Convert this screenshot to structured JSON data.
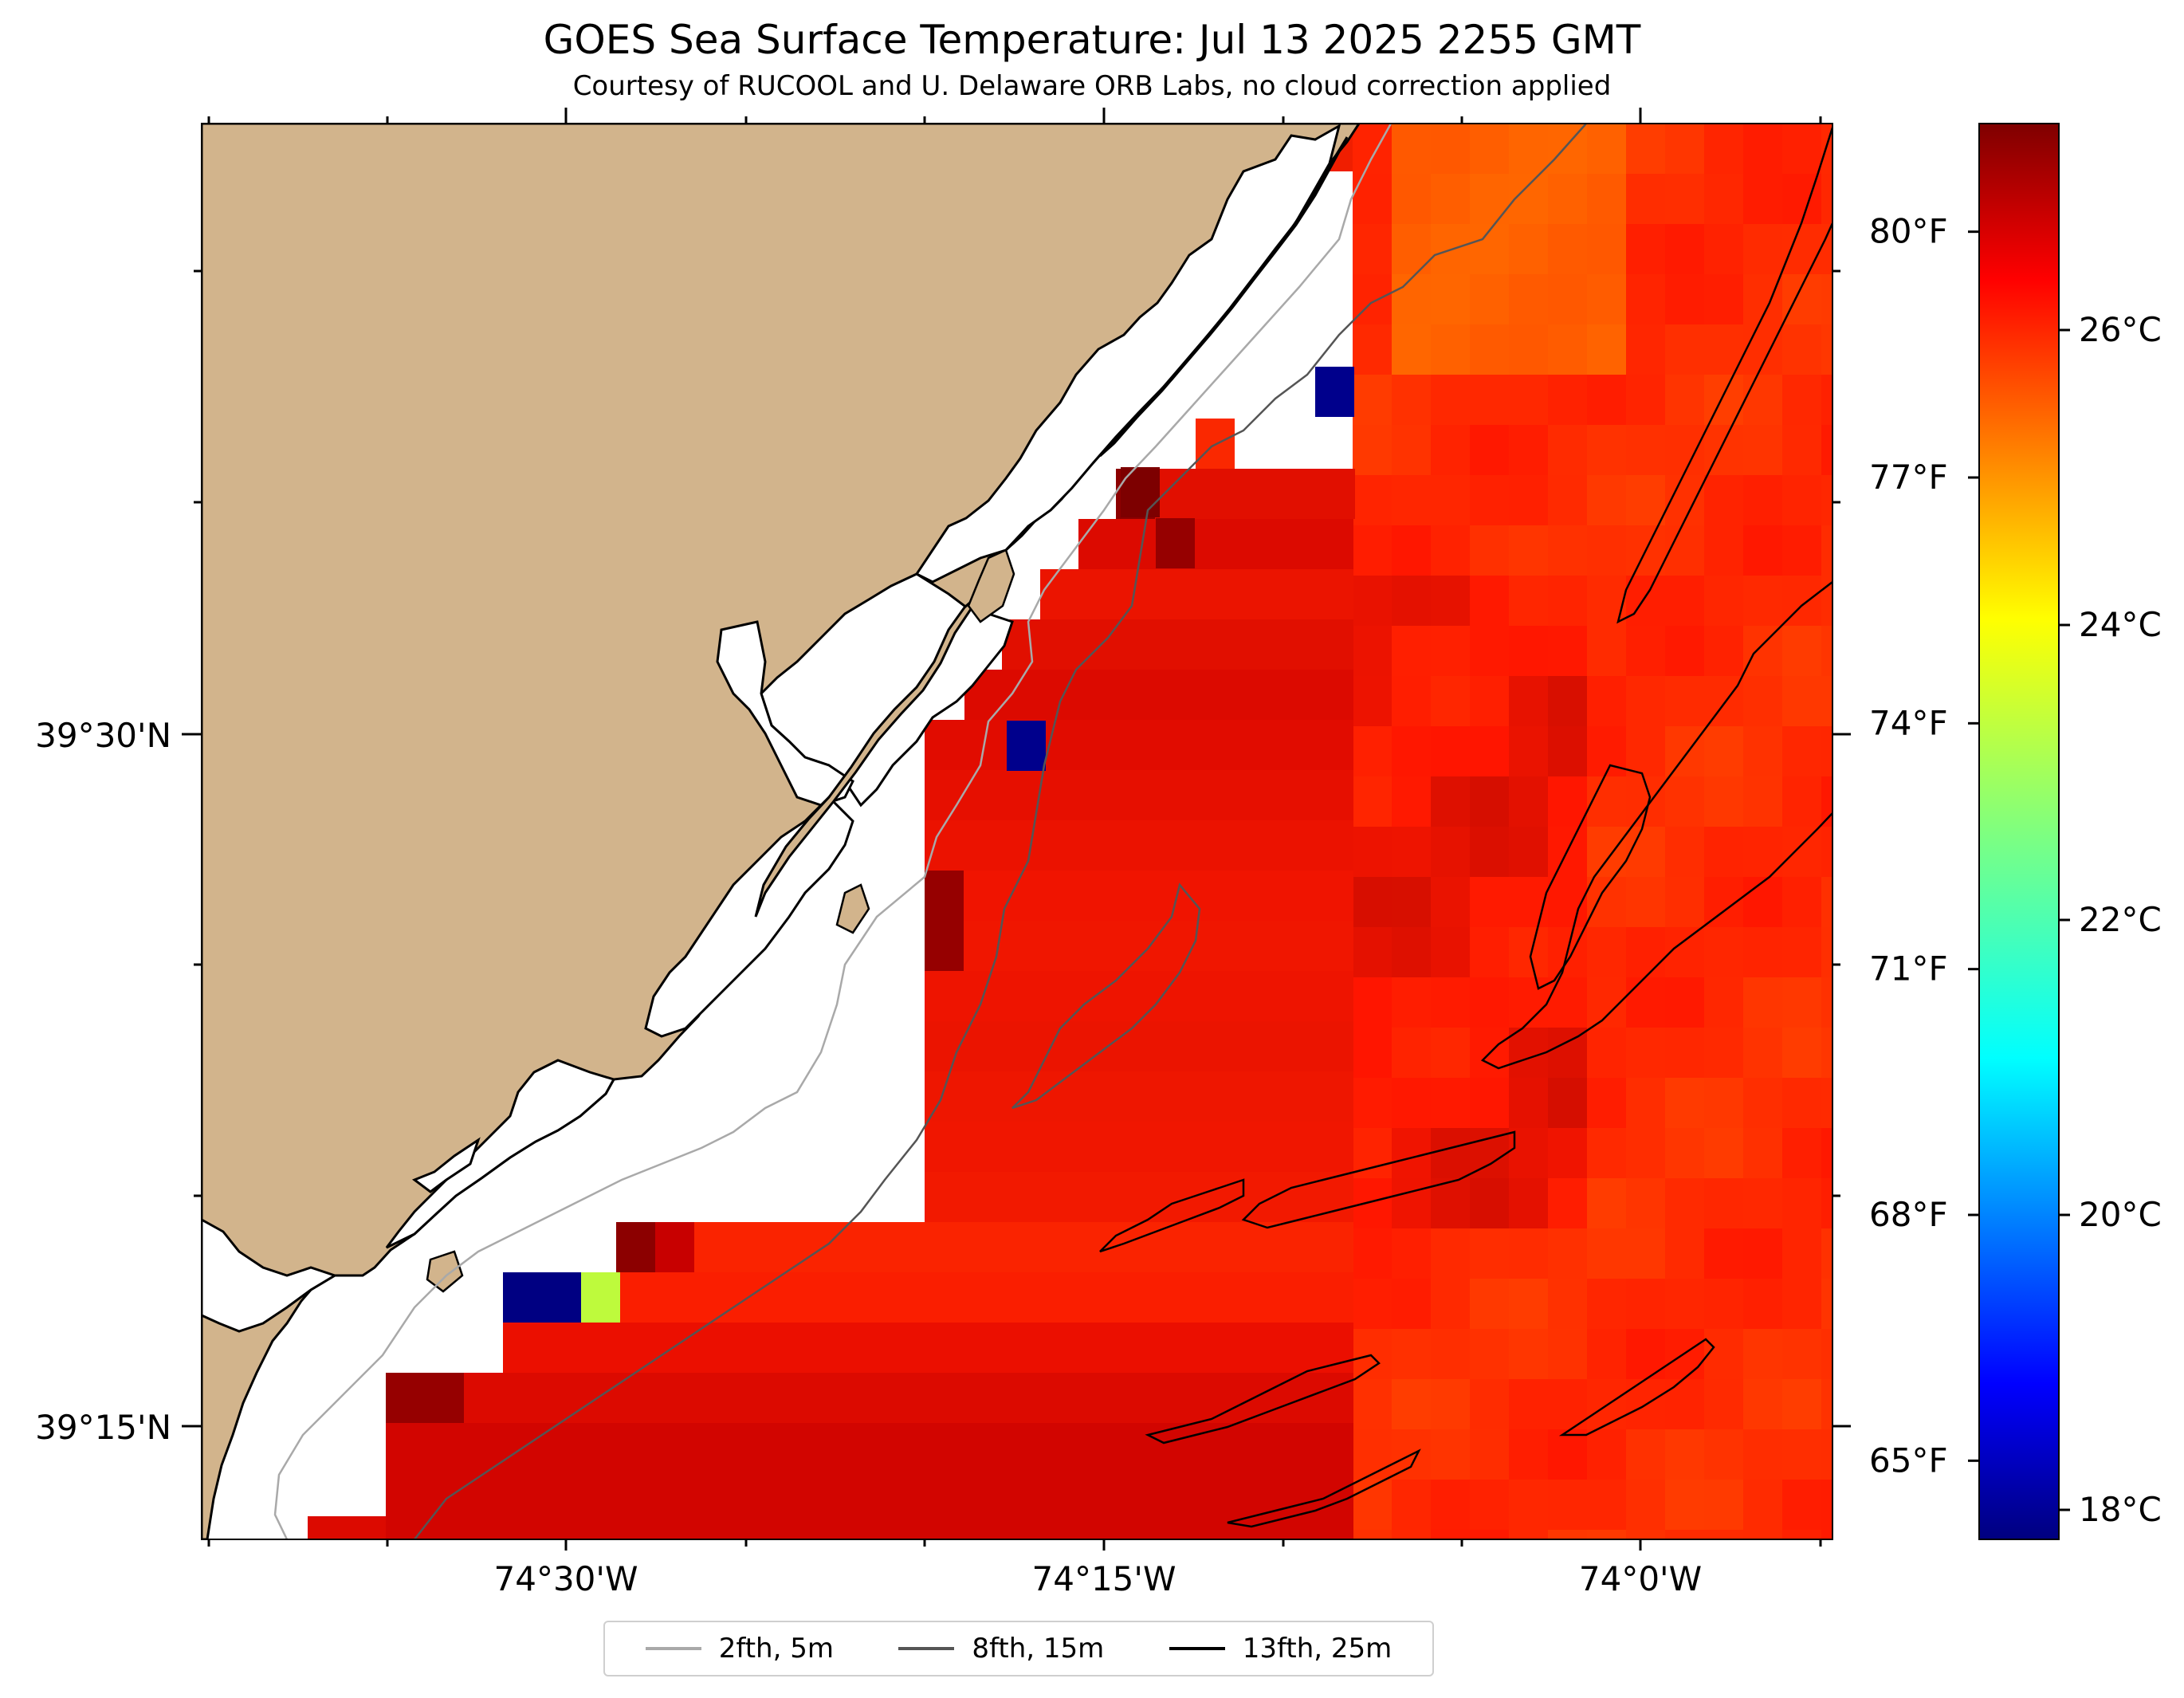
{
  "title": "GOES Sea Surface Temperature: Jul 13 2025 2255 GMT",
  "subtitle": "Courtesy of RUCOOL and U. Delaware ORB Labs, no cloud correction applied",
  "map": {
    "lat_labels": [
      "39°30'N",
      "39°15'N"
    ],
    "lon_labels": [
      "74°30'W",
      "74°15'W",
      "74°0'W"
    ],
    "land_color": "#d2b48c",
    "coast_color": "#000000"
  },
  "colorbar": {
    "colormap": "jet",
    "range_c": [
      17.8,
      27.4
    ],
    "celsius_labels": [
      "26°C",
      "24°C",
      "22°C",
      "20°C",
      "18°C"
    ],
    "fahrenheit_labels": [
      "80°F",
      "77°F",
      "74°F",
      "71°F",
      "68°F",
      "65°F"
    ]
  },
  "legend": {
    "items": [
      {
        "label": "2fth, 5m",
        "color": "#a9a9a9"
      },
      {
        "label": "8fth, 15m",
        "color": "#555555"
      },
      {
        "label": "13fth, 25m",
        "color": "#000000"
      }
    ]
  }
}
